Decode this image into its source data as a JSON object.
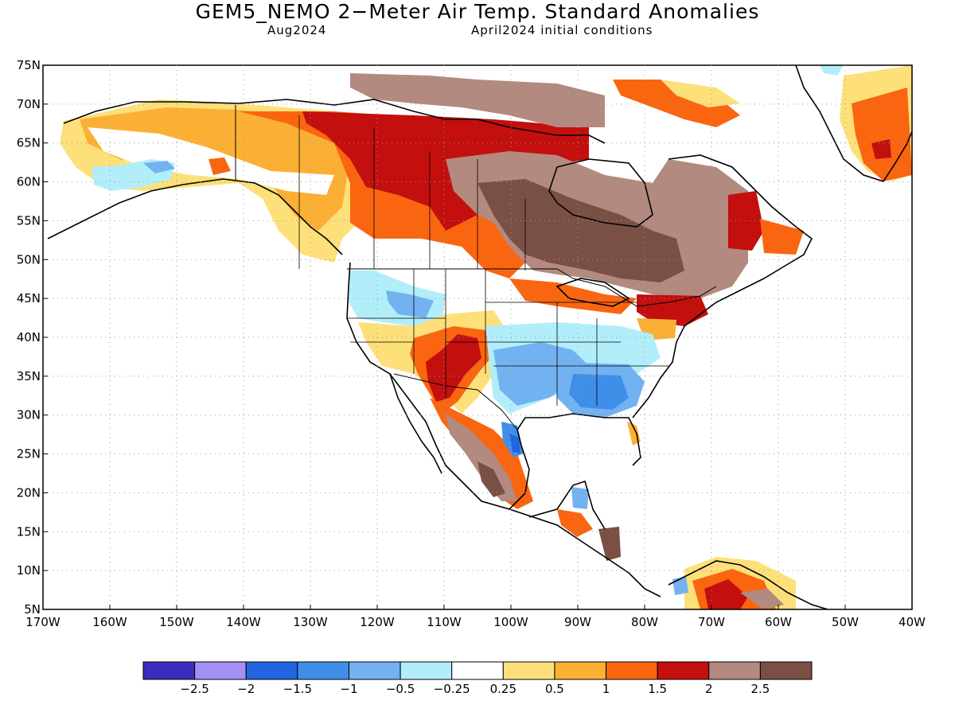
{
  "title": "GEM5_NEMO 2−Meter Air Temp. Standard Anomalies",
  "valid_period": "Aug2024",
  "initial_conditions": "April2024 initial conditions",
  "axes": {
    "lon_labels": [
      "170W",
      "160W",
      "150W",
      "140W",
      "130W",
      "120W",
      "110W",
      "100W",
      "90W",
      "80W",
      "70W",
      "60W",
      "50W",
      "40W"
    ],
    "lat_labels": [
      "75N",
      "70N",
      "65N",
      "60N",
      "55N",
      "50N",
      "45N",
      "40N",
      "35N",
      "30N",
      "25N",
      "20N",
      "15N",
      "10N",
      "5N"
    ],
    "lon_range": [
      -170,
      -40
    ],
    "lat_range": [
      5,
      75
    ],
    "grid": "dotted"
  },
  "colorbar": {
    "colors": [
      "#3b2dbb",
      "#a48ff5",
      "#2165e0",
      "#3f8fe8",
      "#73b2f1",
      "#b1eefa",
      "#ffffff",
      "#fde07a",
      "#fbb035",
      "#fa6510",
      "#c30f0e",
      "#b38a80",
      "#7a5045"
    ],
    "labels": [
      "−2.5",
      "−2",
      "−1.5",
      "−1",
      "−0.5",
      "−0.25",
      "0.25",
      "0.5",
      "1",
      "1.5",
      "2",
      "2.5"
    ]
  }
}
